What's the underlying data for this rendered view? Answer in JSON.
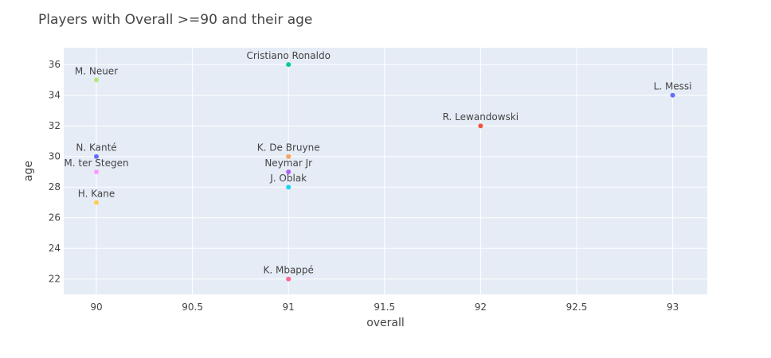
{
  "chart_data": {
    "type": "scatter",
    "title": "Players with Overall >=90 and their age",
    "xlabel": "overall",
    "ylabel": "age",
    "xlim": [
      89.83,
      93.18
    ],
    "ylim": [
      21.0,
      37.1
    ],
    "xticks": [
      90,
      90.5,
      91,
      91.5,
      92,
      92.5,
      93
    ],
    "xtick_labels": [
      "90",
      "90.5",
      "91",
      "91.5",
      "92",
      "92.5",
      "93"
    ],
    "yticks": [
      22,
      24,
      26,
      28,
      30,
      32,
      34,
      36
    ],
    "ytick_labels": [
      "22",
      "24",
      "26",
      "28",
      "30",
      "32",
      "34",
      "36"
    ],
    "grid": true,
    "points": [
      {
        "label": "L. Messi",
        "x": 93,
        "y": 34,
        "color": "#636efa"
      },
      {
        "label": "R. Lewandowski",
        "x": 92,
        "y": 32,
        "color": "#ef553b"
      },
      {
        "label": "Cristiano Ronaldo",
        "x": 91,
        "y": 36,
        "color": "#00cc96"
      },
      {
        "label": "Neymar Jr",
        "x": 91,
        "y": 29,
        "color": "#ab63fa"
      },
      {
        "label": "K. De Bruyne",
        "x": 91,
        "y": 30,
        "color": "#ffa15a"
      },
      {
        "label": "J. Oblak",
        "x": 91,
        "y": 28,
        "color": "#19d3f3"
      },
      {
        "label": "K. Mbappé",
        "x": 91,
        "y": 22,
        "color": "#ff6692"
      },
      {
        "label": "M. Neuer",
        "x": 90,
        "y": 35,
        "color": "#b6e880"
      },
      {
        "label": "M. ter Stegen",
        "x": 90,
        "y": 29,
        "color": "#ff97ff"
      },
      {
        "label": "H. Kane",
        "x": 90,
        "y": 27,
        "color": "#fecb52"
      },
      {
        "label": "N. Kanté",
        "x": 90,
        "y": 30,
        "color": "#636efa"
      }
    ]
  }
}
